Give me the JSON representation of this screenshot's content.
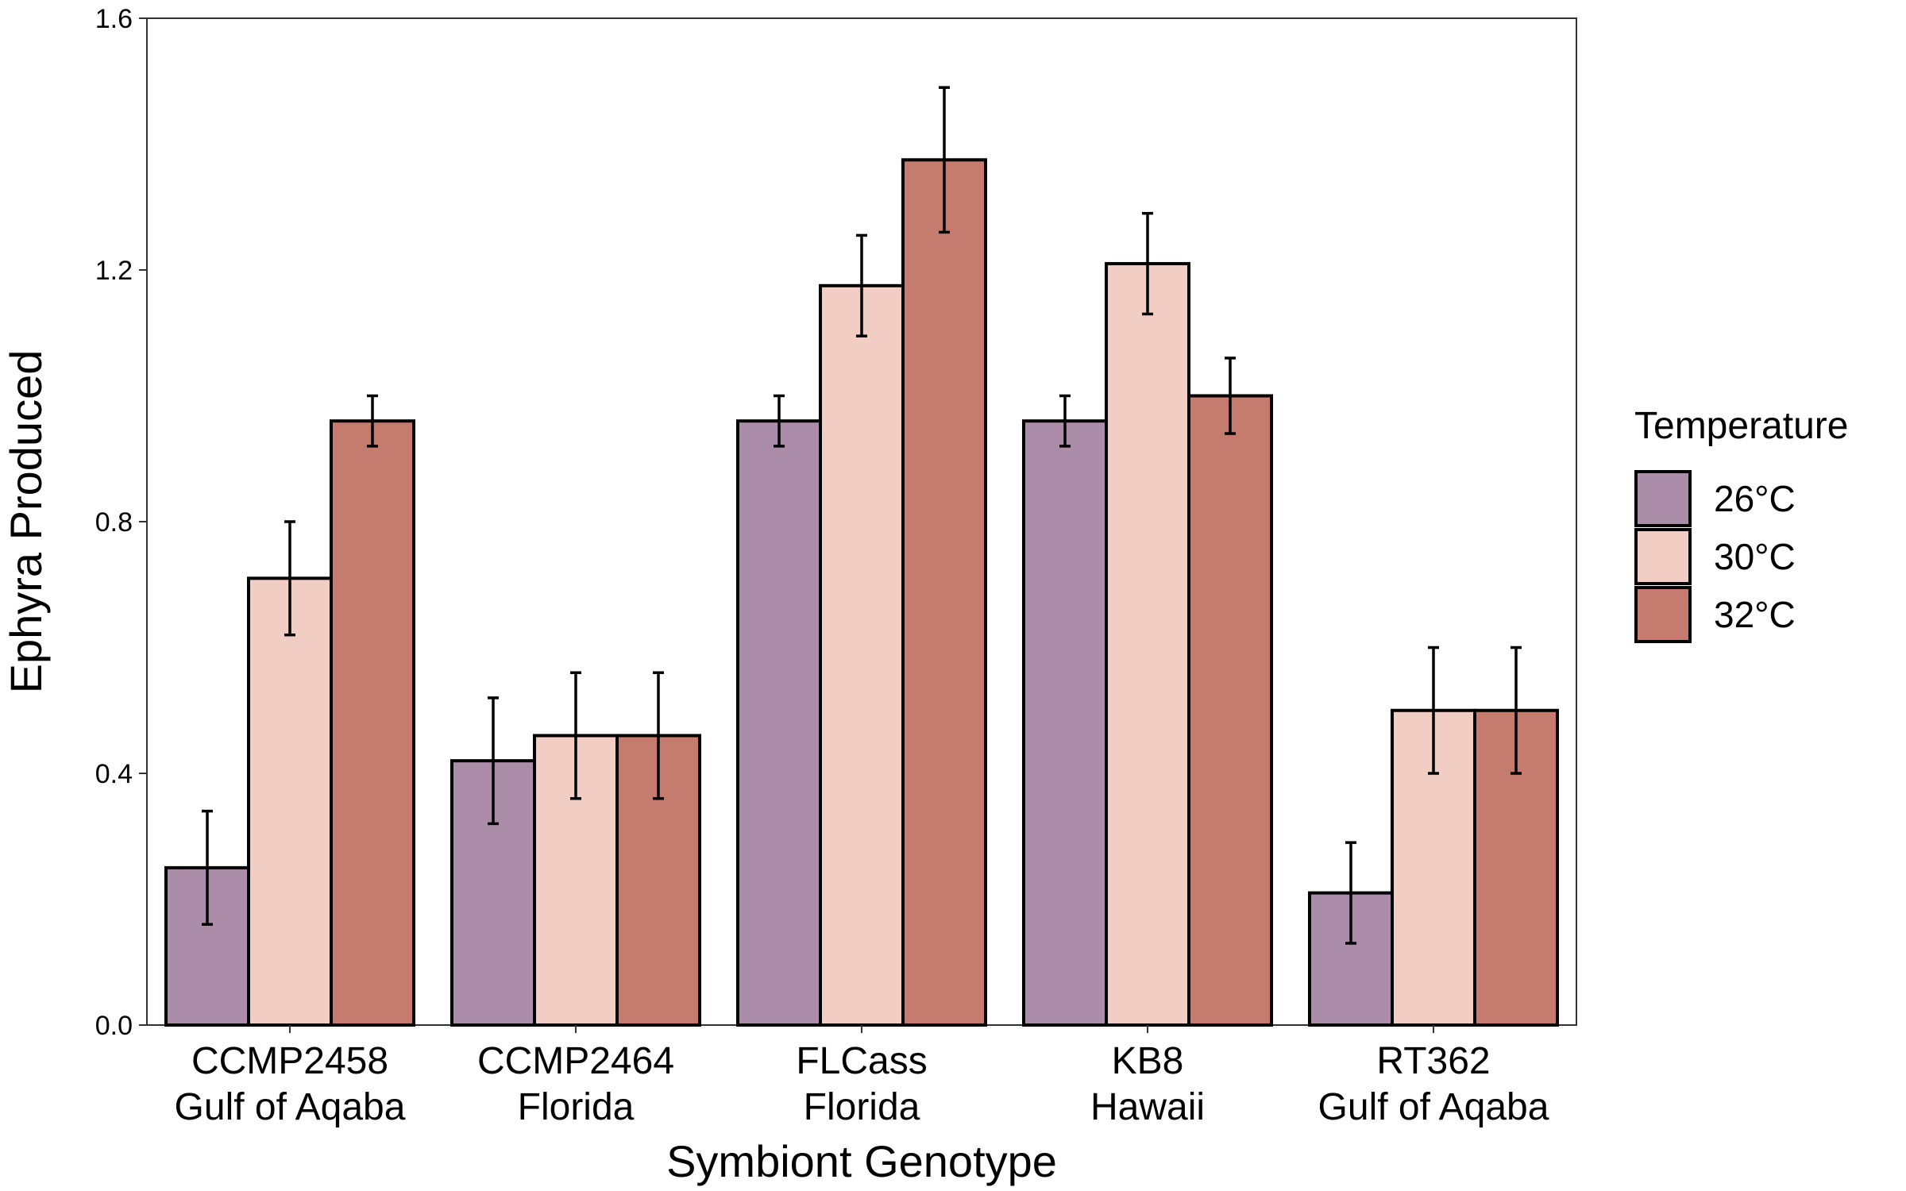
{
  "chart_data": {
    "type": "bar",
    "title": "",
    "xlabel": "Symbiont Genotype",
    "ylabel": "Ephyra Produced",
    "ylim": [
      0,
      1.6
    ],
    "yticks": [
      "0.0",
      "0.4",
      "0.8",
      "1.2",
      "1.6"
    ],
    "grid": false,
    "legend_position": "right",
    "legend_title": "Temperature",
    "categories": [
      {
        "line1": "CCMP2458",
        "line2": "Gulf of Aqaba"
      },
      {
        "line1": "CCMP2464",
        "line2": "Florida"
      },
      {
        "line1": "FLCass",
        "line2": "Florida"
      },
      {
        "line1": "KB8",
        "line2": "Hawaii"
      },
      {
        "line1": "RT362",
        "line2": "Gulf of Aqaba"
      }
    ],
    "series": [
      {
        "name": "26°C",
        "color": "#AB8DA9",
        "values": [
          0.25,
          0.42,
          0.96,
          0.96,
          0.21
        ],
        "error": [
          0.09,
          0.1,
          0.04,
          0.04,
          0.08
        ]
      },
      {
        "name": "30°C",
        "color": "#F2CDC4",
        "values": [
          0.71,
          0.46,
          1.175,
          1.21,
          0.5
        ],
        "error": [
          0.09,
          0.1,
          0.08,
          0.08,
          0.1
        ]
      },
      {
        "name": "32°C",
        "color": "#C57B6E",
        "values": [
          0.96,
          0.46,
          1.375,
          1.0,
          0.5
        ],
        "error": [
          0.04,
          0.1,
          0.115,
          0.06,
          0.1
        ]
      }
    ]
  }
}
